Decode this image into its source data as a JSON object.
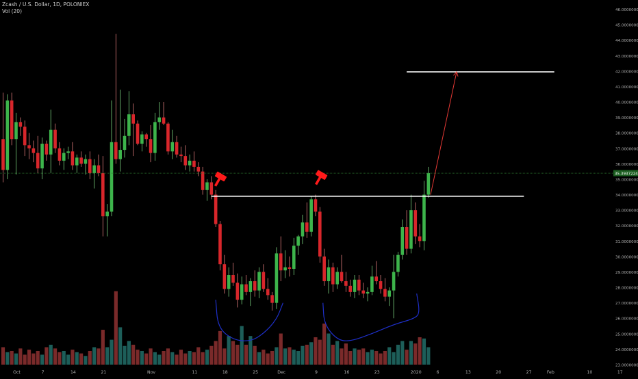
{
  "header": {
    "symbol": "Zcash / U.S. Dollar, 1D, POLONIEX",
    "volume_indicator": "Vol (20)"
  },
  "colors": {
    "up": "#26a69a",
    "down": "#ef5350",
    "bull_candle": "#3db44b",
    "bear_candle": "#d8262b",
    "vol_up": "#1d5e59",
    "vol_down": "#7a2a2a",
    "last_price_line": "#2e7d32",
    "neckline": "#ffffff",
    "arrow": "#e53935",
    "cup_curve": "#1e2fc8",
    "axis_text": "#b0b0b0"
  },
  "chart_data": {
    "type": "candlestick",
    "ylim": [
      23,
      46.6
    ],
    "y_ticks": [
      "23.00000000",
      "24.00000000",
      "25.00000000",
      "26.00000000",
      "27.00000000",
      "28.00000000",
      "29.00000000",
      "30.00000000",
      "31.00000000",
      "32.00000000",
      "33.00000000",
      "34.00000000",
      "35.00000000",
      "36.00000000",
      "37.00000000",
      "38.00000000",
      "39.00000000",
      "40.00000000",
      "41.00000000",
      "42.00000000",
      "43.00000000",
      "44.00000000",
      "45.00000000",
      "46.00000000"
    ],
    "x_ticks": [
      {
        "label": "Oct",
        "day": 0
      },
      {
        "label": "7",
        "day": 6
      },
      {
        "label": "14",
        "day": 13
      },
      {
        "label": "21",
        "day": 20
      },
      {
        "label": "Nov",
        "day": 31
      },
      {
        "label": "11",
        "day": 41
      },
      {
        "label": "18",
        "day": 48
      },
      {
        "label": "25",
        "day": 55
      },
      {
        "label": "Dec",
        "day": 61
      },
      {
        "label": "9",
        "day": 69
      },
      {
        "label": "16",
        "day": 76
      },
      {
        "label": "23",
        "day": 83
      },
      {
        "label": "2020",
        "day": 92
      },
      {
        "label": "6",
        "day": 97
      },
      {
        "label": "13",
        "day": 104
      },
      {
        "label": "20",
        "day": 111
      },
      {
        "label": "27",
        "day": 118
      },
      {
        "label": "Feb",
        "day": 123
      },
      {
        "label": "10",
        "day": 132
      },
      {
        "label": "17",
        "day": 139
      },
      {
        "label": "24",
        "day": 146
      }
    ],
    "last_price": 35.3937224,
    "last_price_label": "35.39372240",
    "candles": [
      [
        37.6,
        40.6,
        34.8,
        35.6
      ],
      [
        35.6,
        40.5,
        35.0,
        40.1
      ],
      [
        40.1,
        40.6,
        37.2,
        37.6
      ],
      [
        37.6,
        39.3,
        35.3,
        38.7
      ],
      [
        38.7,
        39.0,
        37.8,
        38.4
      ],
      [
        38.4,
        38.8,
        36.5,
        37.2
      ],
      [
        37.2,
        38.0,
        36.3,
        37.0
      ],
      [
        37.0,
        37.5,
        36.1,
        36.7
      ],
      [
        36.7,
        37.8,
        35.4,
        35.7
      ],
      [
        35.7,
        37.7,
        35.0,
        37.3
      ],
      [
        37.3,
        37.5,
        36.2,
        36.6
      ],
      [
        36.6,
        39.5,
        35.4,
        38.2
      ],
      [
        38.2,
        38.6,
        36.7,
        37.0
      ],
      [
        37.0,
        37.4,
        35.9,
        36.2
      ],
      [
        36.2,
        37.0,
        35.6,
        36.7
      ],
      [
        36.7,
        37.1,
        36.3,
        36.8
      ],
      [
        36.8,
        37.4,
        35.6,
        35.9
      ],
      [
        35.9,
        36.6,
        35.4,
        36.4
      ],
      [
        36.4,
        36.8,
        35.8,
        36.0
      ],
      [
        36.0,
        36.6,
        35.3,
        36.3
      ],
      [
        36.3,
        36.8,
        35.0,
        35.4
      ],
      [
        35.4,
        36.3,
        34.4,
        35.9
      ],
      [
        35.9,
        36.6,
        35.2,
        35.4
      ],
      [
        35.4,
        36.5,
        31.3,
        32.6
      ],
      [
        32.6,
        33.4,
        31.3,
        32.9
      ],
      [
        32.9,
        40.1,
        32.6,
        37.4
      ],
      [
        37.4,
        44.4,
        36.0,
        36.3
      ],
      [
        36.3,
        40.8,
        35.5,
        36.9
      ],
      [
        36.9,
        38.9,
        36.4,
        37.8
      ],
      [
        37.8,
        40.7,
        37.2,
        39.2
      ],
      [
        39.2,
        39.9,
        36.5,
        38.6
      ],
      [
        38.6,
        38.8,
        37.2,
        37.3
      ],
      [
        37.3,
        38.1,
        36.8,
        37.9
      ],
      [
        37.9,
        38.0,
        37.1,
        37.6
      ],
      [
        37.6,
        38.5,
        36.1,
        36.7
      ],
      [
        36.7,
        39.3,
        36.2,
        38.7
      ],
      [
        38.7,
        40.0,
        38.2,
        39.0
      ],
      [
        39.0,
        40.0,
        38.5,
        38.6
      ],
      [
        38.6,
        38.7,
        36.6,
        36.8
      ],
      [
        36.8,
        38.2,
        36.3,
        37.4
      ],
      [
        37.4,
        37.8,
        36.4,
        36.6
      ],
      [
        36.6,
        37.1,
        36.1,
        36.5
      ],
      [
        36.5,
        37.2,
        35.6,
        35.9
      ],
      [
        35.9,
        36.6,
        35.5,
        36.2
      ],
      [
        36.2,
        36.8,
        35.5,
        35.8
      ],
      [
        35.8,
        36.1,
        35.2,
        35.5
      ],
      [
        35.5,
        35.8,
        34.0,
        34.3
      ],
      [
        34.3,
        35.0,
        33.6,
        34.8
      ],
      [
        34.8,
        35.2,
        33.7,
        34.0
      ],
      [
        34.0,
        34.3,
        31.9,
        32.1
      ],
      [
        32.1,
        32.3,
        29.1,
        29.5
      ],
      [
        29.5,
        30.1,
        27.6,
        27.9
      ],
      [
        27.9,
        29.3,
        27.4,
        28.8
      ],
      [
        28.8,
        29.6,
        28.1,
        28.3
      ],
      [
        28.3,
        28.9,
        26.7,
        27.2
      ],
      [
        27.2,
        28.7,
        26.9,
        28.2
      ],
      [
        28.2,
        28.8,
        27.5,
        27.7
      ],
      [
        27.7,
        28.6,
        26.8,
        28.4
      ],
      [
        28.4,
        29.1,
        27.4,
        27.8
      ],
      [
        27.8,
        29.3,
        27.3,
        29.0
      ],
      [
        29.0,
        29.5,
        27.7,
        27.9
      ],
      [
        27.9,
        28.6,
        27.2,
        27.5
      ],
      [
        27.5,
        27.7,
        26.5,
        27.0
      ],
      [
        27.0,
        30.6,
        26.6,
        30.2
      ],
      [
        30.2,
        31.3,
        28.4,
        29.1
      ],
      [
        29.1,
        30.4,
        28.6,
        29.3
      ],
      [
        29.3,
        30.0,
        28.7,
        29.2
      ],
      [
        29.2,
        31.2,
        28.8,
        30.7
      ],
      [
        30.7,
        31.4,
        30.1,
        31.3
      ],
      [
        31.3,
        32.7,
        30.8,
        32.2
      ],
      [
        32.2,
        33.5,
        31.2,
        31.6
      ],
      [
        31.6,
        33.9,
        31.3,
        33.7
      ],
      [
        33.7,
        34.0,
        32.6,
        32.9
      ],
      [
        32.9,
        33.2,
        29.6,
        30.0
      ],
      [
        30.0,
        30.5,
        28.1,
        28.4
      ],
      [
        28.4,
        29.8,
        27.6,
        29.3
      ],
      [
        29.3,
        29.6,
        27.7,
        28.2
      ],
      [
        28.2,
        29.3,
        27.9,
        29.0
      ],
      [
        29.0,
        30.1,
        28.3,
        28.4
      ],
      [
        28.4,
        29.0,
        27.7,
        28.1
      ],
      [
        28.1,
        28.5,
        27.4,
        27.7
      ],
      [
        27.7,
        28.8,
        27.3,
        28.5
      ],
      [
        28.5,
        28.8,
        27.5,
        27.8
      ],
      [
        27.8,
        28.3,
        27.3,
        27.6
      ],
      [
        27.6,
        28.0,
        27.1,
        27.7
      ],
      [
        27.7,
        29.4,
        27.5,
        28.7
      ],
      [
        28.7,
        29.7,
        28.2,
        28.4
      ],
      [
        28.4,
        28.8,
        27.6,
        27.9
      ],
      [
        27.9,
        28.6,
        27.1,
        27.4
      ],
      [
        27.4,
        28.0,
        26.8,
        27.8
      ],
      [
        27.8,
        30.1,
        26.0,
        29.0
      ],
      [
        29.0,
        30.3,
        28.7,
        30.1
      ],
      [
        30.1,
        32.4,
        29.8,
        31.9
      ],
      [
        31.9,
        33.0,
        30.1,
        30.5
      ],
      [
        30.5,
        34.0,
        30.2,
        33.0
      ],
      [
        33.0,
        33.5,
        30.8,
        31.3
      ],
      [
        31.3,
        32.1,
        30.6,
        31.0
      ],
      [
        31.0,
        34.9,
        30.4,
        34.0
      ],
      [
        34.0,
        35.8,
        33.8,
        35.4
      ]
    ],
    "volume_ylim": [
      23,
      30.2
    ],
    "volumes": [
      24.4,
      24.0,
      24.1,
      23.9,
      24.3,
      23.8,
      24.2,
      23.9,
      24.1,
      23.8,
      24.4,
      24.6,
      24.3,
      24.0,
      24.1,
      23.8,
      24.2,
      24.0,
      23.9,
      23.7,
      24.1,
      24.4,
      24.3,
      25.8,
      24.4,
      25.0,
      28.9,
      26.0,
      24.5,
      24.9,
      24.6,
      24.2,
      24.1,
      23.9,
      24.3,
      24.0,
      23.8,
      24.1,
      24.3,
      24.0,
      23.8,
      24.2,
      23.9,
      24.1,
      24.0,
      24.4,
      24.0,
      24.2,
      24.5,
      24.9,
      25.7,
      24.3,
      25.3,
      24.9,
      24.6,
      26.1,
      24.6,
      25.3,
      24.5,
      24.0,
      24.2,
      23.9,
      24.1,
      24.4,
      25.5,
      24.3,
      24.4,
      24.2,
      24.1,
      24.5,
      24.6,
      24.8,
      25.2,
      25.0,
      26.3,
      25.5,
      24.6,
      24.9,
      24.3,
      24.7,
      24.1,
      24.3,
      24.2,
      24.3,
      24.0,
      24.2,
      24.1,
      23.9,
      24.1,
      24.4,
      24.0,
      24.6,
      24.9,
      24.2,
      24.9,
      24.7,
      25.2,
      25.1,
      24.4
    ],
    "annotations": {
      "neckline": {
        "price": 33.9,
        "from_day": 48,
        "to_day": 120
      },
      "target_line": {
        "price": 41.95,
        "from_day": 93,
        "to_day": 127
      },
      "arrow": {
        "from_day": 98.5,
        "from_price": 34.0,
        "to_day": 104.5,
        "to_price": 41.95
      },
      "cup_curves": [
        {
          "points": [
            [
              49,
              27.2
            ],
            [
              49.5,
              25.4
            ],
            [
              53,
              24.6
            ],
            [
              57,
              24.5
            ],
            [
              60,
              25.0
            ],
            [
              63,
              25.9
            ],
            [
              64.5,
              27.0
            ]
          ]
        },
        {
          "points": [
            [
              73.7,
              27.0
            ],
            [
              74,
              25.6
            ],
            [
              77,
              24.6
            ],
            [
              80,
              24.5
            ],
            [
              85,
              25.0
            ],
            [
              90,
              25.6
            ],
            [
              95,
              26.0
            ],
            [
              96,
              26.4
            ],
            [
              95.3,
              27.6
            ]
          ]
        }
      ],
      "hammers": [
        {
          "day": 50,
          "price": 35.1
        },
        {
          "day": 73.2,
          "price": 35.2
        }
      ]
    }
  }
}
